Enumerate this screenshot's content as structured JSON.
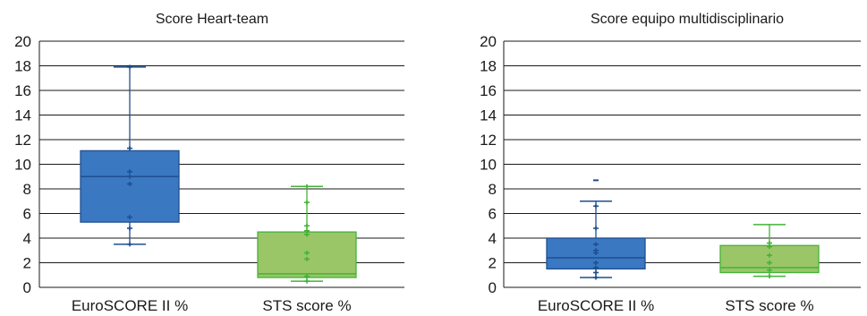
{
  "chart_data": [
    {
      "type": "box",
      "title": "Score Heart-team",
      "xlabel": "",
      "ylabel": "",
      "ylim": [
        0,
        20
      ],
      "yticks": [
        0,
        2,
        4,
        6,
        8,
        10,
        12,
        14,
        16,
        18,
        20
      ],
      "grid": "horizontal",
      "categories": [
        "EuroSCORE II %",
        "STS score %"
      ],
      "boxes": [
        {
          "category": "EuroSCORE II %",
          "color": "#3a78c2",
          "stroke": "#1f4f8f",
          "min": 3.5,
          "q1": 5.3,
          "median": 9.0,
          "q3": 11.1,
          "max": 17.9,
          "points": [
            3.5,
            4.8,
            5.7,
            8.4,
            9.0,
            9.4,
            11.3,
            17.9
          ],
          "outliers": []
        },
        {
          "category": "STS score %",
          "color": "#9ac667",
          "stroke": "#43b337",
          "min": 0.5,
          "q1": 0.8,
          "median": 1.1,
          "q3": 4.5,
          "max": 8.2,
          "points": [
            0.5,
            0.9,
            2.3,
            2.8,
            4.3,
            4.6,
            5.0,
            6.9,
            8.2
          ],
          "outliers": []
        }
      ]
    },
    {
      "type": "box",
      "title": "Score equipo multidisciplinario",
      "xlabel": "",
      "ylabel": "",
      "ylim": [
        0,
        20
      ],
      "yticks": [
        0,
        2,
        4,
        6,
        8,
        10,
        12,
        14,
        16,
        18,
        20
      ],
      "grid": "horizontal",
      "categories": [
        "EuroSCORE II %",
        "STS score %"
      ],
      "boxes": [
        {
          "category": "EuroSCORE II %",
          "color": "#3a78c2",
          "stroke": "#1f4f8f",
          "min": 0.8,
          "q1": 1.5,
          "median": 2.4,
          "q3": 4.0,
          "max": 7.0,
          "points": [
            0.8,
            1.2,
            1.6,
            2.0,
            2.8,
            3.0,
            3.5,
            4.8,
            6.6
          ],
          "outliers": [
            8.7
          ]
        },
        {
          "category": "STS score %",
          "color": "#9ac667",
          "stroke": "#43b337",
          "min": 0.9,
          "q1": 1.2,
          "median": 1.6,
          "q3": 3.4,
          "max": 5.1,
          "points": [
            0.9,
            1.4,
            2.0,
            2.6,
            3.3,
            3.6
          ],
          "outliers": []
        }
      ]
    }
  ]
}
